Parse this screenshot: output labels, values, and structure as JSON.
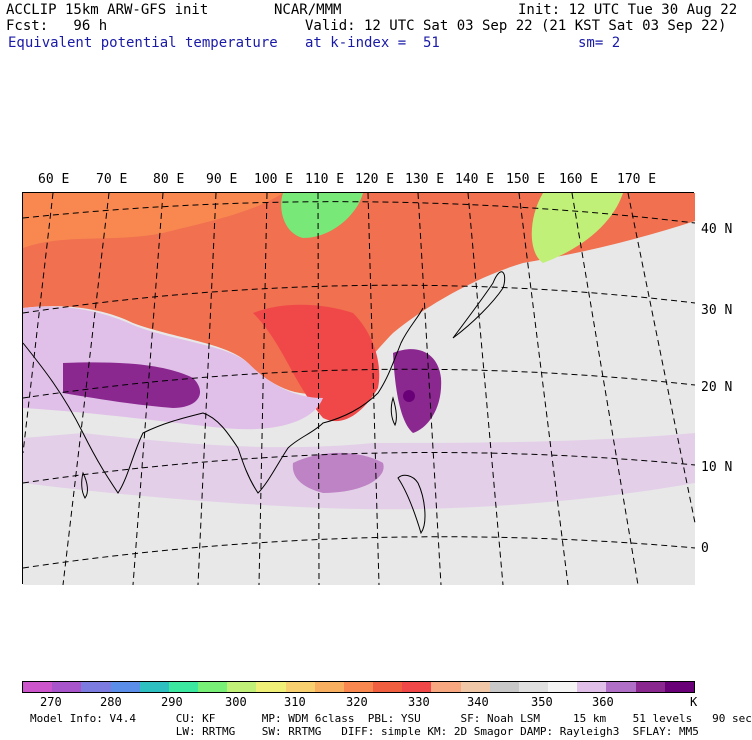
{
  "header": {
    "left_line1": "ACCLIP 15km ARW-GFS init",
    "left_line2": "Fcst:   96 h",
    "center": "NCAR/MMM",
    "init": "Init: 12 UTC Tue 30 Aug 22",
    "valid": "Valid: 12 UTC Sat 03 Sep 22 (21 KST Sat 03 Sep 22)",
    "field": "Equivalent potential temperature",
    "kindex": "at k-index =  51",
    "sm": "sm= 2"
  },
  "map": {
    "lon_labels": [
      "60 E",
      "70 E",
      "80 E",
      "90 E",
      "100 E",
      "110 E",
      "120 E",
      "130 E",
      "140 E",
      "150 E",
      "160 E",
      "170 E"
    ],
    "lat_labels": [
      "40 N",
      "30 N",
      "20 N",
      "10 N",
      "0"
    ]
  },
  "colorbar": {
    "colors": [
      "#cc55cc",
      "#a855cc",
      "#7b7be0",
      "#5a8ee8",
      "#2ec0c0",
      "#3ce8a0",
      "#78f078",
      "#c0f078",
      "#f0f078",
      "#f8d070",
      "#f8b060",
      "#f88850",
      "#f06040",
      "#f04848",
      "#f8a880",
      "#f0c8a8",
      "#c8c8c8",
      "#e0e0e0",
      "#f4f4f4",
      "#e0c0e8",
      "#b070c8",
      "#8a2890",
      "#6a0078"
    ],
    "ticks": [
      "270",
      "280",
      "290",
      "300",
      "310",
      "320",
      "330",
      "340",
      "350",
      "360",
      "K"
    ]
  },
  "model_info": {
    "line1": "Model Info: V4.4      CU: KF       MP: WDM 6class  PBL: YSU      SF: Noah LSM     15 km    51 levels   90 sec",
    "line2": "                      LW: RRTMG    SW: RRTMG   DIFF: simple KM: 2D Smagor DAMP: Rayleigh3  SFLAY: MM5"
  }
}
